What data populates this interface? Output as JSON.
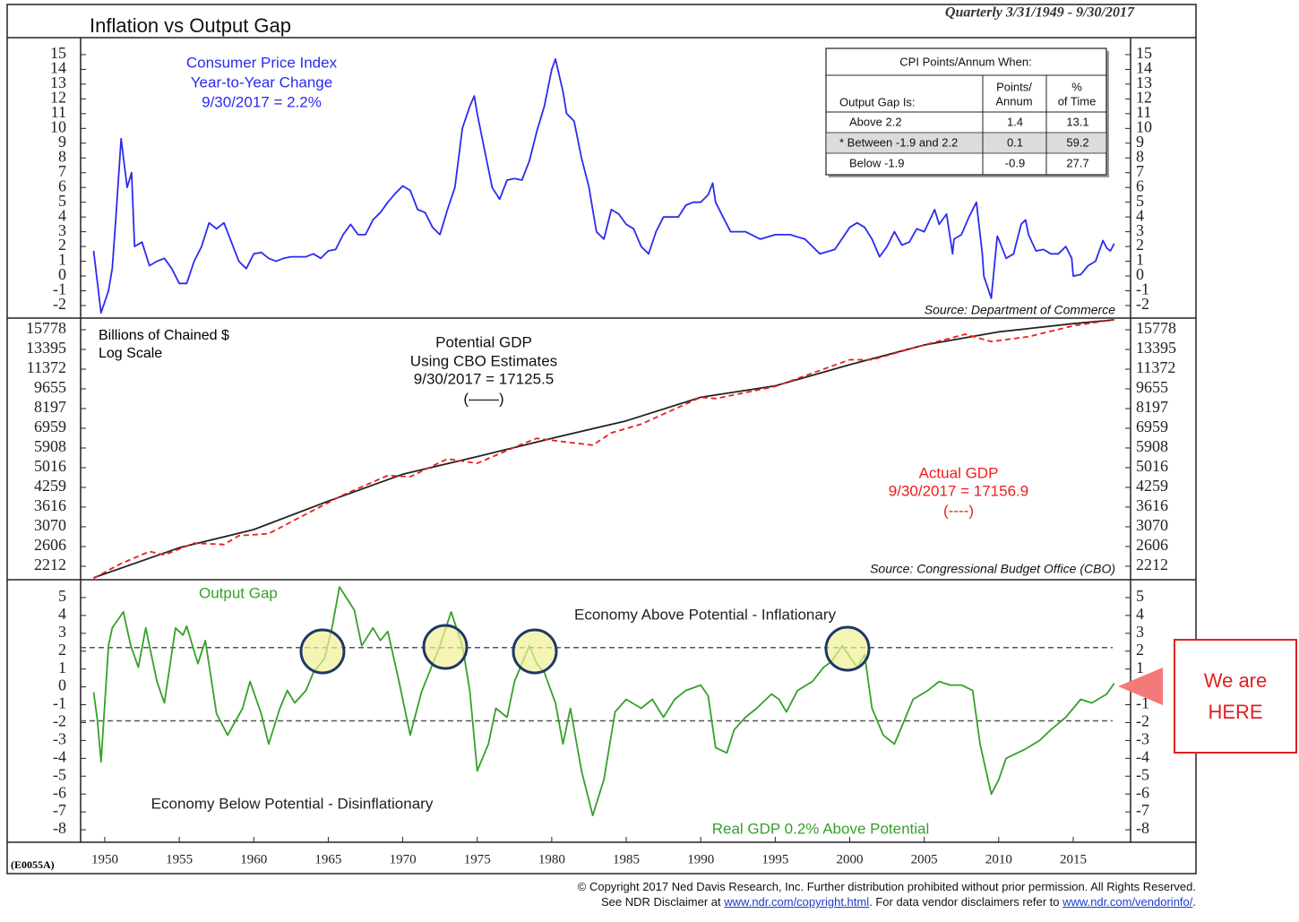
{
  "title": "Inflation vs Output Gap",
  "date_range": "Quarterly 3/31/1949 - 9/30/2017",
  "code": "(E0055A)",
  "copyright": "© Copyright 2017 Ned Davis Research, Inc.  Further distribution prohibited without prior permission.  All Rights Reserved.",
  "disclaimer": {
    "prefix": "See NDR Disclaimer at ",
    "link1": "www.ndr.com/copyright.html",
    "middle": ". For data vendor disclaimers refer to ",
    "link2": "www.ndr.com/vendorinfo/",
    "end": "."
  },
  "callout": [
    "We are",
    "HERE"
  ],
  "chart_data": [
    {
      "type": "line",
      "series": [
        {
          "name": "Consumer Price Index",
          "color": "#2b2bef",
          "x": [
            1949.25,
            1949.75,
            1950.25,
            1950.5,
            1950.75,
            1951.1,
            1951.5,
            1951.8,
            1952,
            1952.5,
            1953,
            1953.5,
            1954,
            1954.5,
            1955,
            1955.5,
            1956,
            1956.5,
            1957,
            1957.5,
            1958,
            1958.5,
            1959,
            1959.5,
            1960,
            1960.5,
            1961,
            1961.5,
            1962,
            1962.5,
            1963,
            1963.5,
            1964,
            1964.5,
            1965,
            1965.5,
            1966,
            1966.5,
            1967,
            1967.5,
            1968,
            1968.5,
            1969,
            1969.5,
            1970,
            1970.5,
            1971,
            1971.5,
            1972,
            1972.5,
            1973,
            1973.5,
            1974,
            1974.5,
            1974.8,
            1975,
            1975.5,
            1976,
            1976.5,
            1977,
            1977.5,
            1978,
            1978.5,
            1979,
            1979.5,
            1980,
            1980.25,
            1980.75,
            1981,
            1981.5,
            1982,
            1982.5,
            1982.75,
            1983,
            1983.5,
            1984,
            1984.5,
            1985,
            1985.5,
            1986,
            1986.5,
            1987,
            1987.5,
            1988,
            1988.5,
            1989,
            1989.5,
            1990,
            1990.5,
            1990.8,
            1991,
            1991.5,
            1992,
            1993,
            1994,
            1995,
            1996,
            1997,
            1998,
            1999,
            2000,
            2000.5,
            2001,
            2001.5,
            2002,
            2002.5,
            2003,
            2003.5,
            2004,
            2004.5,
            2005,
            2005.7,
            2006,
            2006.5,
            2006.9,
            2007,
            2007.5,
            2008,
            2008.5,
            2008.9,
            2009,
            2009.5,
            2009.9,
            2010,
            2010.5,
            2011,
            2011.5,
            2011.8,
            2012,
            2012.5,
            2013,
            2013.5,
            2014,
            2014.5,
            2014.9,
            2015,
            2015.5,
            2016,
            2016.5,
            2017,
            2017.25,
            2017.5,
            2017.75
          ],
          "values": [
            1.7,
            -2.5,
            -1,
            0.5,
            4,
            9.3,
            6,
            7,
            2,
            2.3,
            0.7,
            1,
            1.2,
            0.5,
            -0.5,
            -0.5,
            1,
            2,
            3.6,
            3.2,
            3.6,
            2.3,
            1,
            0.5,
            1.5,
            1.6,
            1.2,
            1,
            1.2,
            1.3,
            1.3,
            1.3,
            1.5,
            1.2,
            1.7,
            1.8,
            2.8,
            3.5,
            2.8,
            2.8,
            3.8,
            4.3,
            5,
            5.6,
            6.1,
            5.8,
            4.5,
            4.3,
            3.3,
            2.8,
            4.5,
            6,
            10,
            11.5,
            12.2,
            11,
            8.5,
            6,
            5.2,
            6.5,
            6.6,
            6.5,
            7.8,
            9.8,
            11.5,
            14,
            14.7,
            12.5,
            11,
            10.5,
            8,
            6,
            4.5,
            3,
            2.5,
            4.5,
            4.2,
            3.5,
            3.2,
            2,
            1.5,
            3,
            4,
            4,
            4,
            4.8,
            5,
            5,
            5.5,
            6.3,
            5,
            4,
            3,
            3,
            2.5,
            2.8,
            2.8,
            2.5,
            1.5,
            1.8,
            3.3,
            3.6,
            3.3,
            2.5,
            1.3,
            2,
            3,
            2.1,
            2.3,
            3.2,
            3,
            4.5,
            3.5,
            4.2,
            1.5,
            2.5,
            2.8,
            4,
            5,
            1.5,
            0,
            -1.5,
            2.7,
            2.5,
            1.2,
            1.5,
            3.5,
            3.8,
            2.8,
            1.7,
            1.8,
            1.5,
            1.5,
            2,
            1.2,
            0,
            0.1,
            0.7,
            1,
            2.4,
            1.9,
            1.7,
            2.2
          ],
          "label_lines": [
            "Year-to-Year Change",
            "9/30/2017 = 2.2%"
          ]
        }
      ],
      "source": "Source: Department of Commerce",
      "ylim": [
        -2.85,
        16.15
      ],
      "yticks": [
        -2,
        -1,
        0,
        1,
        2,
        3,
        4,
        5,
        6,
        7,
        8,
        9,
        10,
        11,
        12,
        13,
        14,
        15
      ],
      "table": {
        "title": "CPI Points/Annum When:",
        "headers": [
          "Output Gap Is:",
          [
            "Points/",
            "Annum"
          ],
          [
            "%",
            "of Time"
          ]
        ],
        "rows": [
          [
            "Above 2.2",
            1.4,
            13.1
          ],
          [
            "* Between -1.9 and 2.2",
            0.1,
            59.2
          ],
          [
            "Below -1.9",
            -0.9,
            27.7
          ]
        ]
      }
    },
    {
      "type": "line",
      "log_scale": true,
      "units_lines": [
        "Billions of Chained $",
        "Log Scale"
      ],
      "series": [
        {
          "name": "Potential GDP",
          "color": "#222222",
          "dashed": false,
          "x": [
            1949.25,
            1955,
            1960,
            1965,
            1970,
            1975,
            1980,
            1985,
            1990,
            1995,
            2000,
            2005,
            2010,
            2015,
            2017.75
          ],
          "values": [
            2010,
            2580,
            3000,
            3800,
            4750,
            5500,
            6400,
            7400,
            9000,
            9900,
            11800,
            13900,
            15500,
            16600,
            17125.5
          ],
          "label_lines": [
            "Using CBO Estimates",
            "9/30/2017 = 17125.5",
            "(——)"
          ]
        },
        {
          "name": "Actual GDP",
          "color": "#ee1c1c",
          "dashed": true,
          "x": [
            1949.25,
            1951,
            1953,
            1954,
            1956,
            1958,
            1959,
            1961,
            1963,
            1966,
            1969,
            1970.5,
            1973,
            1975,
            1978,
            1979,
            1980.5,
            1982.75,
            1984,
            1986,
            1990,
            1991,
            1995,
            2000,
            2001.5,
            2005,
            2007.75,
            2009.5,
            2012,
            2015,
            2017.75
          ],
          "values": [
            2000,
            2250,
            2500,
            2430,
            2680,
            2650,
            2850,
            2900,
            3300,
            4000,
            4700,
            4650,
            5400,
            5200,
            6100,
            6400,
            6250,
            6050,
            6700,
            7200,
            9000,
            8900,
            9850,
            12300,
            12300,
            13900,
            15200,
            14300,
            14900,
            16300,
            17156.9
          ],
          "label_lines": [
            "9/30/2017 = 17156.9",
            "(----)"
          ]
        }
      ],
      "source": "Source: Congressional Budget Office (CBO)",
      "ylim": [
        1978,
        17380
      ],
      "yticks": [
        2212,
        2606,
        3070,
        3616,
        4259,
        5016,
        5908,
        6959,
        8197,
        9655,
        11372,
        13395,
        15778
      ]
    },
    {
      "type": "line",
      "series": [
        {
          "name": "Output Gap",
          "color": "#36a02a",
          "x": [
            1949.25,
            1949.5,
            1949.75,
            1950.25,
            1950.5,
            1951.25,
            1951.75,
            1952.25,
            1952.75,
            1953.5,
            1954,
            1954.75,
            1955.25,
            1955.5,
            1956.25,
            1956.75,
            1957.5,
            1958.25,
            1959.25,
            1959.75,
            1960.5,
            1961,
            1961.75,
            1962.25,
            1962.75,
            1963.5,
            1964,
            1964.75,
            1965.25,
            1965.75,
            1966.75,
            1967.25,
            1968,
            1968.5,
            1969,
            1969.75,
            1970.5,
            1971.25,
            1972.5,
            1973.25,
            1974,
            1974.5,
            1975,
            1975.75,
            1976.25,
            1977,
            1977.5,
            1978.5,
            1979,
            1979.5,
            1980.25,
            1980.75,
            1981.25,
            1982,
            1982.75,
            1983.5,
            1984.25,
            1985,
            1986,
            1986.75,
            1987.5,
            1988.25,
            1989,
            1990,
            1990.5,
            1991,
            1991.75,
            1992.25,
            1993,
            1993.75,
            1994.75,
            1995.25,
            1995.75,
            1996.5,
            1997.5,
            1998.25,
            1998.75,
            1999.5,
            2000.5,
            2001,
            2001.5,
            2002.25,
            2003,
            2003.75,
            2004.25,
            2005.25,
            2006,
            2006.75,
            2007.5,
            2008.25,
            2008.75,
            2009.5,
            2010,
            2010.5,
            2011.25,
            2011.75,
            2012.75,
            2013.5,
            2014.5,
            2015.5,
            2016.25,
            2017.25,
            2017.75
          ],
          "values": [
            -0.3,
            -1.8,
            -4.2,
            2.3,
            3.3,
            4.2,
            2.3,
            1.1,
            3.3,
            0.3,
            -0.9,
            3.3,
            2.9,
            3.4,
            1.3,
            2.6,
            -1.5,
            -2.7,
            -1.2,
            0.3,
            -1.5,
            -3.2,
            -1.2,
            -0.2,
            -0.9,
            -0.2,
            0.8,
            1.6,
            3.3,
            5.6,
            4.3,
            2.3,
            3.3,
            2.6,
            3.1,
            0.3,
            -2.7,
            -0.3,
            2.3,
            4.2,
            2.3,
            -0.2,
            -4.7,
            -3.2,
            -1.2,
            -1.7,
            0.3,
            2.3,
            1.3,
            0.8,
            -0.9,
            -3.2,
            -1.2,
            -4.7,
            -7.2,
            -5.2,
            -1.4,
            -0.7,
            -1.2,
            -0.7,
            -1.7,
            -0.7,
            -0.2,
            0.1,
            -0.5,
            -3.4,
            -3.7,
            -2.4,
            -1.7,
            -1.2,
            -0.4,
            -0.7,
            -1.4,
            -0.2,
            0.3,
            1.1,
            1.4,
            2.3,
            1.1,
            1.8,
            -1.2,
            -2.7,
            -3.2,
            -1.7,
            -0.7,
            -0.2,
            0.3,
            0.1,
            0.1,
            -0.2,
            -3.2,
            -6.0,
            -5.2,
            -4.0,
            -3.7,
            -3.5,
            -3.0,
            -2.4,
            -1.7,
            -0.7,
            -0.9,
            -0.4,
            0.2
          ]
        }
      ],
      "reference_lines": [
        2.2,
        -1.9
      ],
      "annotations": [
        "Economy Above Potential - Inflationary",
        "Economy Below Potential - Disinflationary",
        "Real GDP 0.2% Above Potential"
      ],
      "ylim": [
        -8.7,
        6.0
      ],
      "yticks": [
        -8,
        -7,
        -6,
        -5,
        -4,
        -3,
        -2,
        -1,
        0,
        1,
        2,
        3,
        4,
        5
      ],
      "xlim": [
        1948.38,
        2018.85
      ],
      "xticks": [
        1950,
        1955,
        1960,
        1965,
        1970,
        1975,
        1980,
        1985,
        1990,
        1995,
        2000,
        2005,
        2010,
        2015
      ]
    }
  ]
}
